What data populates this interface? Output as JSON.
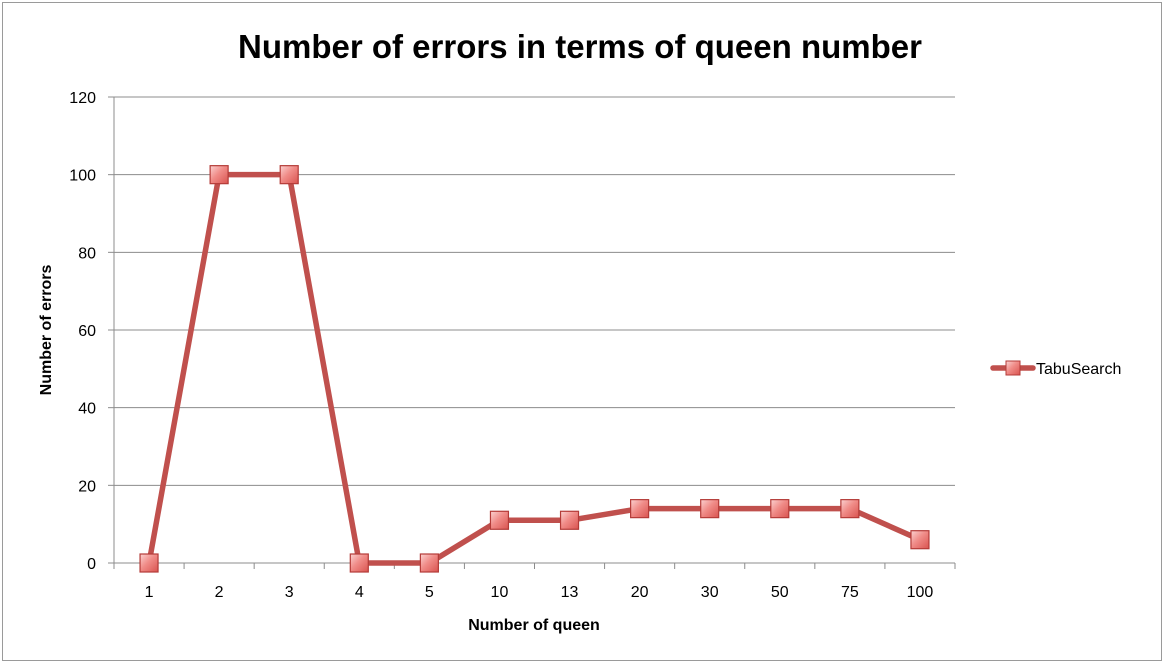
{
  "chart_data": {
    "type": "line",
    "title": "Number of errors in terms of queen number",
    "xlabel": "Number of queen",
    "ylabel": "Number of errors",
    "categories": [
      "1",
      "2",
      "3",
      "4",
      "5",
      "10",
      "13",
      "20",
      "30",
      "50",
      "75",
      "100"
    ],
    "series": [
      {
        "name": "TabuSearch",
        "values": [
          0,
          100,
          100,
          0,
          0,
          11,
          11,
          14,
          14,
          14,
          14,
          6
        ],
        "color": "#c0504d",
        "marker": "square"
      }
    ],
    "yticks": [
      "0",
      "20",
      "40",
      "60",
      "80",
      "100",
      "120"
    ],
    "ylim": [
      0,
      120
    ],
    "grid": "horizontal",
    "legend_position": "right"
  }
}
